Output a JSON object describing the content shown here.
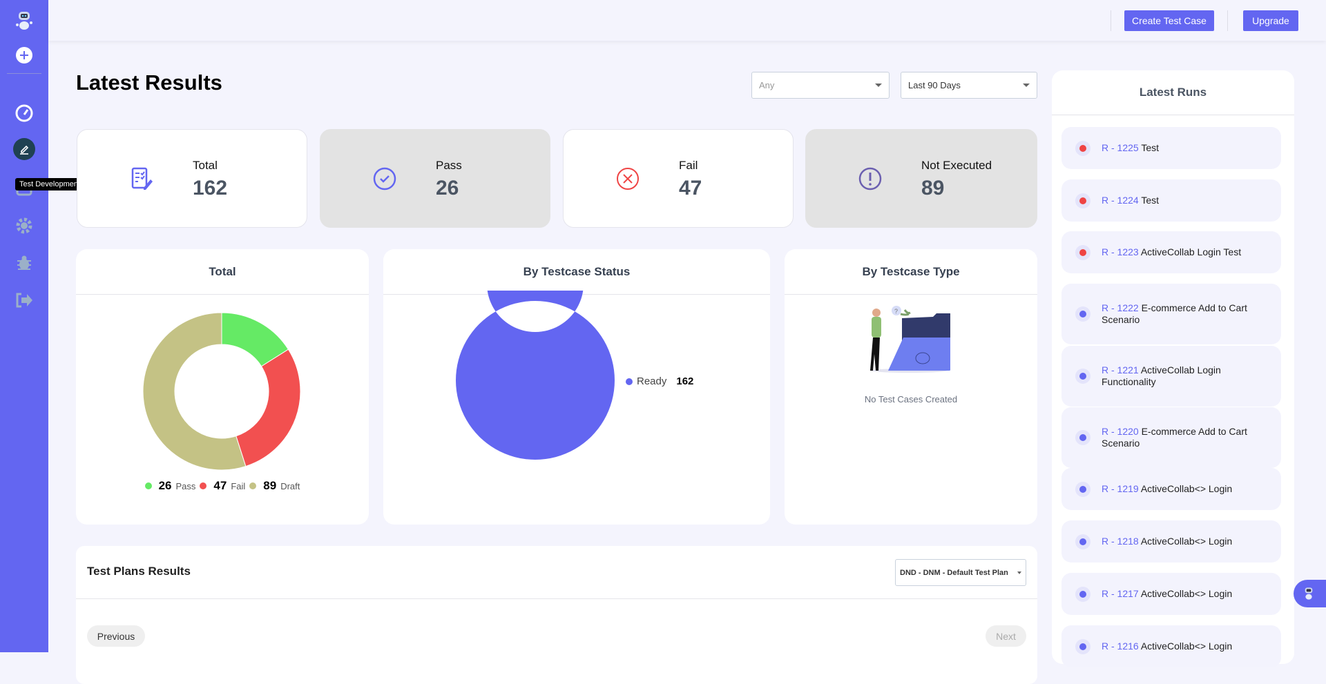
{
  "sidebar": {
    "tooltip": "Test Development",
    "items": [
      "logo",
      "add",
      "dashboard",
      "test-development",
      "test-plans",
      "settings",
      "bugs",
      "logout"
    ]
  },
  "header": {
    "create_test_case": "Create Test Case",
    "upgrade": "Upgrade"
  },
  "page": {
    "title": "Latest Results",
    "filter_any_placeholder": "Any",
    "filter_range": "Last 90 Days"
  },
  "stats": [
    {
      "label": "Total",
      "value": "162",
      "icon": "checklist-edit-icon",
      "color": "#6366f1"
    },
    {
      "label": "Pass",
      "value": "26",
      "icon": "check-circle-icon",
      "color": "#6366f1"
    },
    {
      "label": "Fail",
      "value": "47",
      "icon": "x-circle-icon",
      "color": "#ef4444"
    },
    {
      "label": "Not Executed",
      "value": "89",
      "icon": "exclamation-circle-icon",
      "color": "#6b5fb0"
    }
  ],
  "charts": {
    "total": {
      "title": "Total",
      "legend": [
        {
          "value": "26",
          "label": "Pass"
        },
        {
          "value": "47",
          "label": "Fail"
        },
        {
          "value": "89",
          "label": "Draft"
        }
      ]
    },
    "status": {
      "title": "By Testcase Status",
      "legend": [
        {
          "value": "162",
          "label": "Ready"
        }
      ]
    },
    "type": {
      "title": "By Testcase Type",
      "empty": "No Test Cases Created"
    }
  },
  "chart_data": [
    {
      "type": "pie",
      "title": "Total",
      "categories": [
        "Pass",
        "Fail",
        "Draft"
      ],
      "values": [
        26,
        47,
        89
      ],
      "colors": [
        "#65ea65",
        "#f25050",
        "#c4c285"
      ],
      "legend": "bottom"
    },
    {
      "type": "pie",
      "title": "By Testcase Status",
      "categories": [
        "Ready"
      ],
      "values": [
        162
      ],
      "colors": [
        "#6366f1"
      ],
      "legend": "right"
    }
  ],
  "test_plans": {
    "title": "Test Plans Results",
    "selected_plan": "DND - DNM - Default Test Plan",
    "previous": "Previous",
    "next": "Next"
  },
  "latest_runs": {
    "title": "Latest Runs",
    "items": [
      {
        "id": "R - 1225",
        "name": "Test",
        "status": "fail",
        "color": "#ef4444"
      },
      {
        "id": "R - 1224",
        "name": "Test",
        "status": "fail",
        "color": "#ef4444"
      },
      {
        "id": "R - 1223",
        "name": "ActiveCollab Login Test",
        "status": "fail",
        "color": "#ef4444"
      },
      {
        "id": "R - 1222",
        "name": "E-commerce Add to Cart Scenario",
        "status": "other",
        "color": "#6366f1"
      },
      {
        "id": "R - 1221",
        "name": "ActiveCollab Login Functionality",
        "status": "other",
        "color": "#6366f1"
      },
      {
        "id": "R - 1220",
        "name": "E-commerce Add to Cart Scenario",
        "status": "other",
        "color": "#6366f1"
      },
      {
        "id": "R - 1219",
        "name": "ActiveCollab<> Login",
        "status": "other",
        "color": "#6366f1"
      },
      {
        "id": "R - 1218",
        "name": "ActiveCollab<> Login",
        "status": "other",
        "color": "#6366f1"
      },
      {
        "id": "R - 1217",
        "name": "ActiveCollab<> Login",
        "status": "other",
        "color": "#6366f1"
      },
      {
        "id": "R - 1216",
        "name": "ActiveCollab<> Login",
        "status": "other",
        "color": "#6366f1"
      }
    ]
  }
}
